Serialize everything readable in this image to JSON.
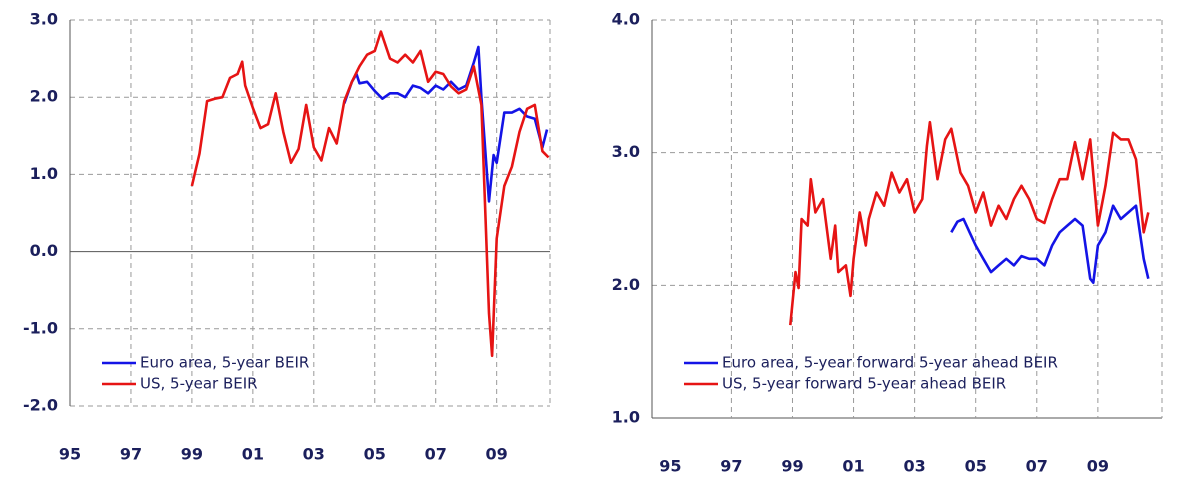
{
  "chart_data": [
    {
      "type": "line",
      "grid": true,
      "legend": "lower left",
      "xlim": [
        1995,
        2010.75
      ],
      "ylim": [
        -2,
        3
      ],
      "xticks": [
        {
          "value": 1995,
          "label": "95"
        },
        {
          "value": 1997,
          "label": "97"
        },
        {
          "value": 1999,
          "label": "99"
        },
        {
          "value": 2001,
          "label": "01"
        },
        {
          "value": 2003,
          "label": "03"
        },
        {
          "value": 2005,
          "label": "05"
        },
        {
          "value": 2007,
          "label": "07"
        },
        {
          "value": 2009,
          "label": "09"
        }
      ],
      "yticks": [
        {
          "value": -2,
          "label": "-2.0"
        },
        {
          "value": -1,
          "label": "-1.0"
        },
        {
          "value": 0,
          "label": "0.0"
        },
        {
          "value": 1,
          "label": "1.0"
        },
        {
          "value": 2,
          "label": "2.0"
        },
        {
          "value": 3,
          "label": "3.0"
        }
      ],
      "series": [
        {
          "name": "Euro area, 5-year BEIR",
          "color": "#1414e6",
          "x": [
            2004.0,
            2004.25,
            2004.4,
            2004.5,
            2004.75,
            2005.0,
            2005.25,
            2005.5,
            2005.75,
            2006.0,
            2006.25,
            2006.5,
            2006.75,
            2007.0,
            2007.25,
            2007.5,
            2007.75,
            2008.0,
            2008.25,
            2008.4,
            2008.5,
            2008.75,
            2008.9,
            2009.0,
            2009.25,
            2009.5,
            2009.75,
            2010.0,
            2010.25,
            2010.5,
            2010.65
          ],
          "values": [
            1.92,
            2.2,
            2.3,
            2.18,
            2.2,
            2.08,
            1.98,
            2.05,
            2.05,
            2.0,
            2.15,
            2.12,
            2.05,
            2.15,
            2.1,
            2.2,
            2.1,
            2.15,
            2.45,
            2.65,
            2.0,
            0.65,
            1.25,
            1.15,
            1.8,
            1.8,
            1.85,
            1.75,
            1.72,
            1.35,
            1.58
          ]
        },
        {
          "name": "US, 5-year BEIR",
          "color": "#e61414",
          "x": [
            1999.0,
            1999.25,
            1999.5,
            1999.75,
            2000.0,
            2000.25,
            2000.5,
            2000.65,
            2000.75,
            2001.0,
            2001.25,
            2001.5,
            2001.75,
            2002.0,
            2002.25,
            2002.5,
            2002.75,
            2003.0,
            2003.25,
            2003.5,
            2003.75,
            2004.0,
            2004.25,
            2004.5,
            2004.75,
            2005.0,
            2005.2,
            2005.5,
            2005.75,
            2006.0,
            2006.25,
            2006.5,
            2006.75,
            2007.0,
            2007.25,
            2007.5,
            2007.75,
            2008.0,
            2008.25,
            2008.5,
            2008.75,
            2008.85,
            2009.0,
            2009.25,
            2009.5,
            2009.75,
            2010.0,
            2010.25,
            2010.5,
            2010.7
          ],
          "values": [
            0.85,
            1.27,
            1.95,
            1.98,
            2.0,
            2.25,
            2.3,
            2.46,
            2.15,
            1.86,
            1.6,
            1.65,
            2.05,
            1.55,
            1.15,
            1.33,
            1.9,
            1.35,
            1.18,
            1.6,
            1.4,
            1.95,
            2.2,
            2.4,
            2.55,
            2.6,
            2.85,
            2.5,
            2.45,
            2.55,
            2.45,
            2.6,
            2.2,
            2.33,
            2.3,
            2.14,
            2.05,
            2.1,
            2.4,
            1.9,
            -0.8,
            -1.35,
            0.17,
            0.85,
            1.1,
            1.55,
            1.85,
            1.9,
            1.3,
            1.22
          ]
        }
      ]
    },
    {
      "type": "line",
      "grid": true,
      "legend": "lower left",
      "xlim": [
        1994.4,
        2011.1
      ],
      "ylim": [
        1,
        4
      ],
      "xticks": [
        {
          "value": 1995,
          "label": "95"
        },
        {
          "value": 1997,
          "label": "97"
        },
        {
          "value": 1999,
          "label": "99"
        },
        {
          "value": 2001,
          "label": "01"
        },
        {
          "value": 2003,
          "label": "03"
        },
        {
          "value": 2005,
          "label": "05"
        },
        {
          "value": 2007,
          "label": "07"
        },
        {
          "value": 2009,
          "label": "09"
        }
      ],
      "yticks": [
        {
          "value": 1,
          "label": "1.0"
        },
        {
          "value": 2,
          "label": "2.0"
        },
        {
          "value": 3,
          "label": "3.0"
        },
        {
          "value": 4,
          "label": "4.0"
        }
      ],
      "series": [
        {
          "name": "Euro area, 5-year forward 5-year ahead BEIR",
          "color": "#1414e6",
          "x": [
            2004.2,
            2004.4,
            2004.6,
            2004.8,
            2005.0,
            2005.25,
            2005.5,
            2005.75,
            2006.0,
            2006.25,
            2006.5,
            2006.75,
            2007.0,
            2007.25,
            2007.5,
            2007.75,
            2008.0,
            2008.25,
            2008.5,
            2008.75,
            2008.85,
            2009.0,
            2009.25,
            2009.5,
            2009.75,
            2010.0,
            2010.25,
            2010.5,
            2010.65
          ],
          "values": [
            2.4,
            2.48,
            2.5,
            2.4,
            2.3,
            2.2,
            2.1,
            2.15,
            2.2,
            2.15,
            2.22,
            2.2,
            2.2,
            2.15,
            2.3,
            2.4,
            2.45,
            2.5,
            2.45,
            2.05,
            2.02,
            2.3,
            2.4,
            2.6,
            2.5,
            2.55,
            2.6,
            2.2,
            2.05
          ]
        },
        {
          "name": "US, 5-year forward 5-year ahead BEIR",
          "color": "#e61414",
          "x": [
            1998.93,
            1999.1,
            1999.2,
            1999.3,
            1999.5,
            1999.6,
            1999.75,
            2000.0,
            2000.25,
            2000.4,
            2000.5,
            2000.75,
            2000.9,
            2001.0,
            2001.2,
            2001.4,
            2001.5,
            2001.75,
            2002.0,
            2002.25,
            2002.5,
            2002.75,
            2003.0,
            2003.25,
            2003.4,
            2003.5,
            2003.75,
            2004.0,
            2004.2,
            2004.5,
            2004.75,
            2005.0,
            2005.25,
            2005.5,
            2005.75,
            2006.0,
            2006.25,
            2006.5,
            2006.75,
            2007.0,
            2007.25,
            2007.5,
            2007.75,
            2008.0,
            2008.25,
            2008.5,
            2008.75,
            2009.0,
            2009.25,
            2009.5,
            2009.75,
            2010.0,
            2010.25,
            2010.5,
            2010.65
          ],
          "values": [
            1.7,
            2.1,
            1.98,
            2.5,
            2.45,
            2.8,
            2.55,
            2.65,
            2.2,
            2.45,
            2.1,
            2.15,
            1.92,
            2.2,
            2.55,
            2.3,
            2.5,
            2.7,
            2.6,
            2.85,
            2.7,
            2.8,
            2.55,
            2.65,
            3.05,
            3.23,
            2.8,
            3.1,
            3.18,
            2.85,
            2.75,
            2.55,
            2.7,
            2.45,
            2.6,
            2.5,
            2.65,
            2.75,
            2.65,
            2.5,
            2.47,
            2.65,
            2.8,
            2.8,
            3.08,
            2.8,
            3.1,
            2.45,
            2.75,
            3.15,
            3.1,
            3.1,
            2.95,
            2.4,
            2.55
          ]
        }
      ]
    }
  ]
}
